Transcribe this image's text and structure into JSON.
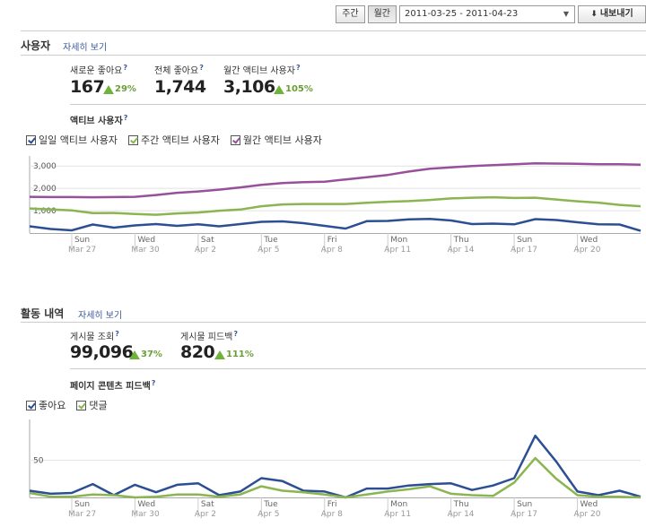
{
  "toolbar": {
    "week_label": "주간",
    "month_label": "월간",
    "date_range": "2011-03-25 - 2011-04-23",
    "export_label": "내보내기"
  },
  "users": {
    "title": "사용자",
    "detail_link": "자세히 보기",
    "kpis": [
      {
        "label": "새로운 좋아요",
        "value": "167",
        "change": "29%"
      },
      {
        "label": "전체 좋아요",
        "value": "1,744",
        "change": ""
      },
      {
        "label": "월간 액티브 사용자",
        "value": "3,106",
        "change": "105%"
      }
    ],
    "chart_title": "액티브 사용자",
    "legend": [
      "일일 액티브 사용자",
      "주간 액티브 사용자",
      "월간 액티브 사용자"
    ]
  },
  "activity": {
    "title": "활동 내역",
    "detail_link": "자세히 보기",
    "kpis": [
      {
        "label": "게시물 조회",
        "value": "99,096",
        "change": "37%"
      },
      {
        "label": "게시물 피드백",
        "value": "820",
        "change": "111%"
      }
    ],
    "chart_title": "페이지 콘텐츠 피드백",
    "legend": [
      "좋아요",
      "댓글"
    ]
  },
  "colors": {
    "blue": "#2c4f94",
    "green": "#8ab551",
    "purple": "#98509c",
    "link": "#3b5998"
  },
  "icons": {
    "up": "up-arrow-icon",
    "export": "download-arrow-icon",
    "dropdown": "chevron-down-icon"
  },
  "chart_data": [
    {
      "type": "line",
      "title": "액티브 사용자",
      "x": [
        "2011-03-25",
        "2011-03-26",
        "2011-03-27",
        "2011-03-28",
        "2011-03-29",
        "2011-03-30",
        "2011-03-31",
        "2011-04-01",
        "2011-04-02",
        "2011-04-03",
        "2011-04-04",
        "2011-04-05",
        "2011-04-06",
        "2011-04-07",
        "2011-04-08",
        "2011-04-09",
        "2011-04-10",
        "2011-04-11",
        "2011-04-12",
        "2011-04-13",
        "2011-04-14",
        "2011-04-15",
        "2011-04-16",
        "2011-04-17",
        "2011-04-18",
        "2011-04-19",
        "2011-04-20",
        "2011-04-21",
        "2011-04-22",
        "2011-04-23"
      ],
      "x_tick_labels": [
        {
          "day": "Sun",
          "date": "Mar 27",
          "index": 2
        },
        {
          "day": "Wed",
          "date": "Mar 30",
          "index": 5
        },
        {
          "day": "Sat",
          "date": "Apr 2",
          "index": 8
        },
        {
          "day": "Tue",
          "date": "Apr 5",
          "index": 11
        },
        {
          "day": "Fri",
          "date": "Apr 8",
          "index": 14
        },
        {
          "day": "Mon",
          "date": "Apr 11",
          "index": 17
        },
        {
          "day": "Thu",
          "date": "Apr 14",
          "index": 20
        },
        {
          "day": "Sun",
          "date": "Apr 17",
          "index": 23
        },
        {
          "day": "Wed",
          "date": "Apr 20",
          "index": 26
        }
      ],
      "y_ticks": [
        "1,000",
        "2,000",
        "3,000"
      ],
      "ylim": [
        0,
        3450
      ],
      "series": [
        {
          "name": "일일 액티브 사용자",
          "color": "#2c4f94",
          "values": [
            300,
            180,
            120,
            380,
            240,
            340,
            400,
            320,
            390,
            300,
            400,
            500,
            520,
            440,
            320,
            200,
            530,
            540,
            610,
            630,
            560,
            400,
            420,
            390,
            620,
            580,
            480,
            390,
            380,
            100
          ]
        },
        {
          "name": "주간 액티브 사용자",
          "color": "#8ab551",
          "values": [
            1100,
            1060,
            1010,
            890,
            900,
            850,
            820,
            880,
            920,
            1000,
            1050,
            1200,
            1280,
            1300,
            1300,
            1300,
            1350,
            1400,
            1430,
            1480,
            1550,
            1580,
            1600,
            1570,
            1580,
            1500,
            1420,
            1360,
            1260,
            1200
          ]
        },
        {
          "name": "월간 액티브 사용자",
          "color": "#98509c",
          "values": [
            1620,
            1610,
            1610,
            1600,
            1610,
            1620,
            1700,
            1800,
            1860,
            1940,
            2040,
            2160,
            2240,
            2280,
            2300,
            2400,
            2500,
            2600,
            2750,
            2880,
            2940,
            3000,
            3040,
            3080,
            3120,
            3110,
            3100,
            3080,
            3080,
            3060
          ]
        }
      ]
    },
    {
      "type": "line",
      "title": "페이지 콘텐츠 피드백",
      "x": [
        "2011-03-25",
        "2011-03-26",
        "2011-03-27",
        "2011-03-28",
        "2011-03-29",
        "2011-03-30",
        "2011-03-31",
        "2011-04-01",
        "2011-04-02",
        "2011-04-03",
        "2011-04-04",
        "2011-04-05",
        "2011-04-06",
        "2011-04-07",
        "2011-04-08",
        "2011-04-09",
        "2011-04-10",
        "2011-04-11",
        "2011-04-12",
        "2011-04-13",
        "2011-04-14",
        "2011-04-15",
        "2011-04-16",
        "2011-04-17",
        "2011-04-18",
        "2011-04-19",
        "2011-04-20",
        "2011-04-21",
        "2011-04-22",
        "2011-04-23"
      ],
      "x_tick_labels": [
        {
          "day": "Sun",
          "date": "Mar 27",
          "index": 2
        },
        {
          "day": "Wed",
          "date": "Mar 30",
          "index": 5
        },
        {
          "day": "Sat",
          "date": "Apr 2",
          "index": 8
        },
        {
          "day": "Tue",
          "date": "Apr 5",
          "index": 11
        },
        {
          "day": "Fri",
          "date": "Apr 8",
          "index": 14
        },
        {
          "day": "Mon",
          "date": "Apr 11",
          "index": 17
        },
        {
          "day": "Thu",
          "date": "Apr 14",
          "index": 20
        },
        {
          "day": "Sun",
          "date": "Apr 17",
          "index": 23
        },
        {
          "day": "Wed",
          "date": "Apr 20",
          "index": 26
        }
      ],
      "y_ticks": [
        "50"
      ],
      "ylim": [
        0,
        105
      ],
      "series": [
        {
          "name": "좋아요",
          "color": "#2c4f94",
          "values": [
            9,
            5,
            6,
            18,
            3,
            17,
            7,
            17,
            19,
            3,
            8,
            26,
            22,
            9,
            8,
            0,
            12,
            12,
            16,
            18,
            19,
            10,
            16,
            26,
            83,
            48,
            8,
            3,
            9,
            1
          ]
        },
        {
          "name": "댓글",
          "color": "#8ab551",
          "values": [
            6,
            1,
            1,
            4,
            3,
            0,
            1,
            4,
            4,
            1,
            4,
            15,
            9,
            7,
            4,
            0,
            4,
            8,
            11,
            15,
            5,
            3,
            2,
            20,
            53,
            25,
            3,
            1,
            1,
            0
          ]
        }
      ]
    }
  ]
}
